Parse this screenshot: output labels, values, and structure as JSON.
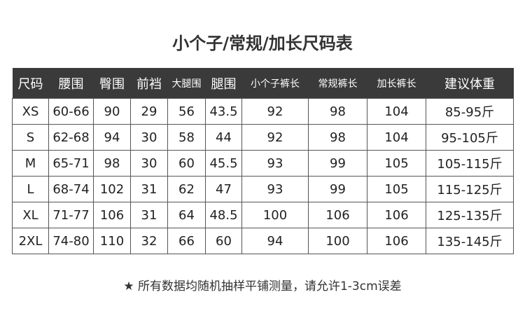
{
  "title": "小个子/常规/加长尺码表",
  "headers": [
    "尺码",
    "腰围",
    "臀围",
    "前裆",
    "大腿围",
    "腿围",
    "小个子裤长",
    "常规裤长",
    "加长裤长",
    "建议体重"
  ],
  "rows": [
    [
      "XS",
      "60-66",
      "90",
      "29",
      "56",
      "43.5",
      "92",
      "98",
      "104",
      "85-95斤"
    ],
    [
      "S",
      "62-68",
      "94",
      "30",
      "58",
      "44",
      "92",
      "98",
      "104",
      "95-105斤"
    ],
    [
      "M",
      "65-71",
      "98",
      "30",
      "60",
      "45.5",
      "93",
      "99",
      "105",
      "105-115斤"
    ],
    [
      "L",
      "68-74",
      "102",
      "31",
      "62",
      "47",
      "93",
      "99",
      "105",
      "115-125斤"
    ],
    [
      "XL",
      "71-77",
      "106",
      "31",
      "64",
      "48.5",
      "100",
      "106",
      "106",
      "125-135斤"
    ],
    [
      "2XL",
      "74-80",
      "110",
      "32",
      "66",
      "60",
      "94",
      "100",
      "106",
      "135-145斤"
    ]
  ],
  "note": {
    "icon": "star-icon",
    "symbol": "★",
    "text": "所有数据均随机抽样平铺测量，请允许1-3cm误差"
  }
}
